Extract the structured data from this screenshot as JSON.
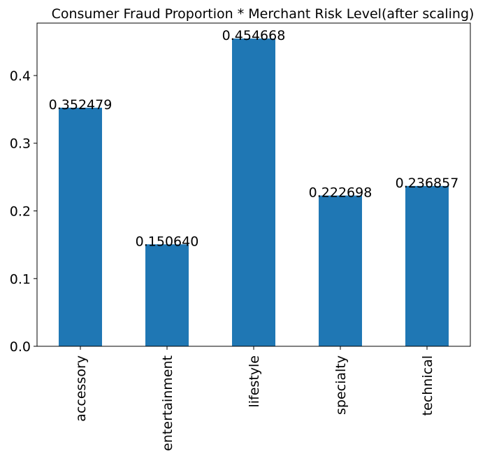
{
  "chart_data": {
    "type": "bar",
    "title": "Consumer Fraud Proportion * Merchant Risk Level(after scaling)",
    "xlabel": "",
    "ylabel": "",
    "categories": [
      "accessory",
      "entertainment",
      "lifestyle",
      "specialty",
      "technical"
    ],
    "values": [
      0.352479,
      0.15064,
      0.454668,
      0.222698,
      0.236857
    ],
    "value_labels": [
      "0.352479",
      "0.150640",
      "0.454668",
      "0.222698",
      "0.236857"
    ],
    "ylim": [
      0,
      0.4775
    ],
    "yticks": [
      0.0,
      0.1,
      0.2,
      0.3,
      0.4
    ],
    "ytick_labels": [
      "0.0",
      "0.1",
      "0.2",
      "0.3",
      "0.4"
    ],
    "grid": false,
    "legend": "none",
    "bar_color": "#1f77b4"
  }
}
